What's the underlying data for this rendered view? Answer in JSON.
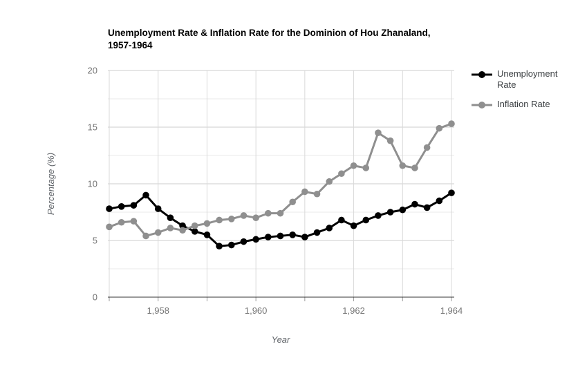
{
  "chart": {
    "title": "Unemployment Rate & Inflation Rate for the Dominion of Hou Zhanaland, 1957-1964",
    "title_lines": [
      "Unemployment Rate & Inflation Rate for the Dominion of Hou Zhanaland,",
      "1957-1964"
    ],
    "y_axis_title": "Percentage (%)",
    "x_axis_title": "Year"
  },
  "legend": {
    "position": "right",
    "items": [
      {
        "label": "Unemployment Rate",
        "color": "#000000"
      },
      {
        "label": "Inflation Rate",
        "color": "#8f8f8f"
      }
    ]
  },
  "chart_data": {
    "type": "line",
    "title": "Unemployment Rate & Inflation Rate for the Dominion of Hou Zhanaland, 1957-1964",
    "xlabel": "Year",
    "ylabel": "Percentage (%)",
    "ylim": [
      0,
      20
    ],
    "xlim": [
      1957,
      1964
    ],
    "grid": true,
    "legend_position": "right",
    "y_major_ticks": [
      0,
      5,
      10,
      15,
      20
    ],
    "y_minor_ticks": [
      2.5,
      7.5,
      12.5,
      17.5
    ],
    "x_gridline_years": [
      1957,
      1958,
      1959,
      1960,
      1961,
      1962,
      1963,
      1964
    ],
    "x_tick_years": [
      1958,
      1960,
      1962,
      1964
    ],
    "x_tick_labels": [
      "1,958",
      "1,960",
      "1,962",
      "1,964"
    ],
    "x": [
      1957,
      1957.25,
      1957.5,
      1957.75,
      1958,
      1958.25,
      1958.5,
      1958.75,
      1959,
      1959.25,
      1959.5,
      1959.75,
      1960,
      1960.25,
      1960.5,
      1960.75,
      1961,
      1961.25,
      1961.5,
      1961.75,
      1962,
      1962.25,
      1962.5,
      1962.75,
      1963,
      1963.25,
      1963.5,
      1963.75,
      1964
    ],
    "series": [
      {
        "name": "Unemployment Rate",
        "color": "#000000",
        "values": [
          7.8,
          8.0,
          8.1,
          9.0,
          7.8,
          7.0,
          6.3,
          5.8,
          5.5,
          4.5,
          4.6,
          4.9,
          5.1,
          5.3,
          5.4,
          5.5,
          5.3,
          5.7,
          6.1,
          6.8,
          6.3,
          6.8,
          7.2,
          7.5,
          7.7,
          8.2,
          7.9,
          8.5,
          9.2
        ]
      },
      {
        "name": "Inflation Rate",
        "color": "#8f8f8f",
        "values": [
          6.2,
          6.6,
          6.7,
          5.4,
          5.7,
          6.1,
          5.9,
          6.3,
          6.5,
          6.8,
          6.9,
          7.2,
          7.0,
          7.4,
          7.4,
          8.4,
          9.3,
          9.1,
          10.2,
          10.9,
          11.6,
          11.4,
          14.5,
          13.8,
          11.6,
          11.4,
          13.2,
          14.9,
          15.3
        ]
      }
    ]
  },
  "colors": {
    "title": "#000000",
    "tick_label": "#757575",
    "axis_title": "#5f6368",
    "legend_text": "#3c4043",
    "gridline_major": "#cccccc",
    "gridline_minor": "#e8e8e8",
    "gridline_vertical": "#d9d9d9",
    "axis_baseline": "#333333",
    "tick_mark": "#999999"
  }
}
